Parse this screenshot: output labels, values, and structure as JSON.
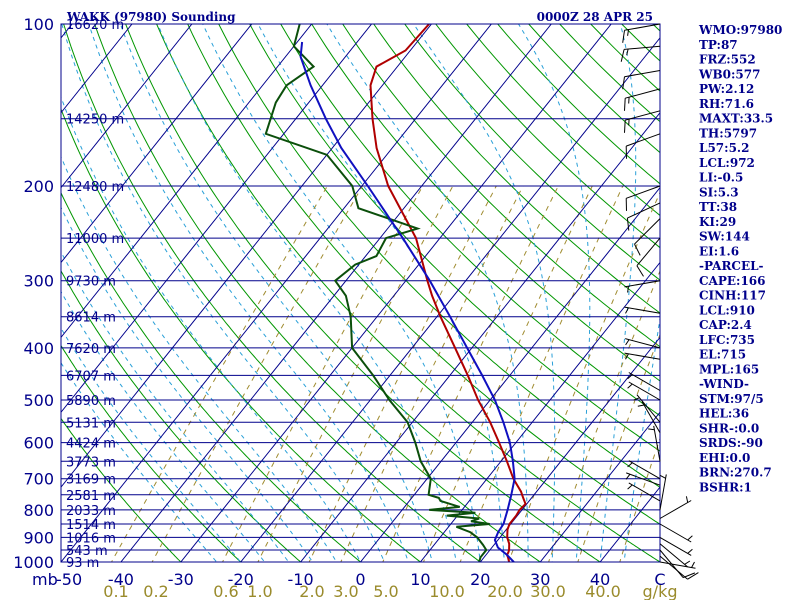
{
  "header": {
    "station": "WAKK (97980) Sounding",
    "time": "0000Z 28 APR 25"
  },
  "indices": [
    "WMO:97980",
    "TP:87",
    "FRZ:552",
    "WB0:577",
    "PW:2.12",
    "RH:71.6",
    "MAXT:33.5",
    "TH:5797",
    "L57:5.2",
    "LCL:972",
    "LI:-0.5",
    "SI:5.3",
    "TT:38",
    "KI:29",
    "SW:144",
    "EI:1.6",
    "-PARCEL-",
    "CAPE:166",
    "CINH:117",
    "LCL:910",
    "CAP:2.4",
    "LFC:735",
    "EL:715",
    "MPL:165",
    "-WIND-",
    "STM:97/5",
    "HEL:36",
    "SHR-:0.0",
    "SRDS:-90",
    "EHI:0.0",
    "BRN:270.7",
    "BSHR:1"
  ],
  "colors": {
    "frame": "#00008b",
    "isobar": "#00008b",
    "isotherm": "#00008b",
    "dry_adiabat": "#009600",
    "moist_adiabat": "#2aa0d8",
    "mixing_ratio": "#a08c30",
    "temperature": "#b00000",
    "dewpoint": "#0b4f0b",
    "parcel": "#1010c0",
    "wind_barb": "#000000"
  },
  "chart_data": {
    "type": "skew-t log-p sounding",
    "y_scale": "log",
    "pressure_unit": "mb",
    "ylim": [
      1000,
      100
    ],
    "xlim": [
      -50,
      50
    ],
    "pressure_ticks": [
      100,
      200,
      300,
      400,
      500,
      600,
      700,
      800,
      900,
      1000
    ],
    "temperature_ticks": [
      -50,
      -40,
      -30,
      -20,
      -10,
      0,
      10,
      20,
      30,
      40,
      50
    ],
    "temperature_tick_labels": [
      "-50",
      "-40",
      "-30",
      "-20",
      "-10",
      "0",
      "10",
      "20",
      "30",
      "40",
      "C"
    ],
    "mixing_ratio_labels": [
      "0.1",
      "0.2",
      "0.6",
      "1.0",
      "2.0",
      "3.0",
      "5.0",
      "10.0",
      "20.0",
      "30.0",
      "40.0",
      "g/kg"
    ],
    "height_levels": [
      {
        "p": 100,
        "label": "16620 m"
      },
      {
        "p": 150,
        "label": "14250 m"
      },
      {
        "p": 200,
        "label": "12480 m"
      },
      {
        "p": 250,
        "label": "11000 m"
      },
      {
        "p": 300,
        "label": "9730 m"
      },
      {
        "p": 350,
        "label": "8614 m"
      },
      {
        "p": 400,
        "label": "7620 m"
      },
      {
        "p": 450,
        "label": "6707 m"
      },
      {
        "p": 500,
        "label": "5890 m"
      },
      {
        "p": 550,
        "label": "5131 m"
      },
      {
        "p": 600,
        "label": "4424 m"
      },
      {
        "p": 650,
        "label": "3773 m"
      },
      {
        "p": 700,
        "label": "3169 m"
      },
      {
        "p": 750,
        "label": "2581 m"
      },
      {
        "p": 800,
        "label": "2033 m"
      },
      {
        "p": 850,
        "label": "1514 m"
      },
      {
        "p": 900,
        "label": "1016 m"
      },
      {
        "p": 950,
        "label": "543 m"
      },
      {
        "p": 1000,
        "label": "93 m"
      }
    ],
    "series": [
      {
        "key": "temperature",
        "points": [
          [
            1000,
            24.8
          ],
          [
            980,
            24.0
          ],
          [
            970,
            23.5
          ],
          [
            960,
            23.4
          ],
          [
            950,
            23.2
          ],
          [
            925,
            22.4
          ],
          [
            900,
            21.2
          ],
          [
            870,
            20.2
          ],
          [
            850,
            19.8
          ],
          [
            820,
            19.8
          ],
          [
            800,
            19.6
          ],
          [
            780,
            19.8
          ],
          [
            760,
            18.6
          ],
          [
            740,
            17.4
          ],
          [
            700,
            14.4
          ],
          [
            650,
            11.0
          ],
          [
            600,
            7.2
          ],
          [
            550,
            3.0
          ],
          [
            500,
            -2.0
          ],
          [
            450,
            -7.0
          ],
          [
            400,
            -12.8
          ],
          [
            350,
            -19.4
          ],
          [
            320,
            -23.6
          ],
          [
            300,
            -26.4
          ],
          [
            250,
            -34.0
          ],
          [
            200,
            -45.6
          ],
          [
            170,
            -52.6
          ],
          [
            150,
            -57.2
          ],
          [
            130,
            -62.0
          ],
          [
            120,
            -63.5
          ],
          [
            112,
            -60.8
          ],
          [
            100,
            -60.4
          ]
        ]
      },
      {
        "key": "dewpoint",
        "points": [
          [
            1000,
            19.8
          ],
          [
            980,
            19.4
          ],
          [
            960,
            19.4
          ],
          [
            950,
            19.4
          ],
          [
            930,
            18.2
          ],
          [
            900,
            16.2
          ],
          [
            880,
            14.3
          ],
          [
            860,
            11.3
          ],
          [
            850,
            16.5
          ],
          [
            840,
            13.0
          ],
          [
            830,
            14.0
          ],
          [
            820,
            8.2
          ],
          [
            810,
            12.6
          ],
          [
            800,
            4.5
          ],
          [
            790,
            9.2
          ],
          [
            780,
            7.2
          ],
          [
            770,
            5.2
          ],
          [
            760,
            4.5
          ],
          [
            750,
            2.4
          ],
          [
            700,
            0.6
          ],
          [
            650,
            -3.4
          ],
          [
            600,
            -6.8
          ],
          [
            550,
            -10.8
          ],
          [
            500,
            -16.8
          ],
          [
            450,
            -22.8
          ],
          [
            400,
            -30.0
          ],
          [
            350,
            -34.4
          ],
          [
            320,
            -38.0
          ],
          [
            300,
            -41.8
          ],
          [
            280,
            -40.6
          ],
          [
            270,
            -38.2
          ],
          [
            250,
            -39.0
          ],
          [
            240,
            -35.0
          ],
          [
            220,
            -47.6
          ],
          [
            200,
            -51.6
          ],
          [
            175,
            -60.0
          ],
          [
            160,
            -73.0
          ],
          [
            140,
            -75.5
          ],
          [
            130,
            -76.0
          ],
          [
            120,
            -74.0
          ],
          [
            110,
            -80.0
          ],
          [
            100,
            -82.0
          ]
        ]
      },
      {
        "key": "parcel",
        "points": [
          [
            1000,
            25.6
          ],
          [
            970,
            23.5
          ],
          [
            940,
            21.0
          ],
          [
            910,
            19.5
          ],
          [
            880,
            19.0
          ],
          [
            850,
            18.8
          ],
          [
            800,
            17.6
          ],
          [
            750,
            16.2
          ],
          [
            700,
            14.6
          ],
          [
            650,
            12.0
          ],
          [
            600,
            9.0
          ],
          [
            550,
            5.2
          ],
          [
            500,
            0.8
          ],
          [
            450,
            -4.6
          ],
          [
            400,
            -10.8
          ],
          [
            350,
            -17.8
          ],
          [
            300,
            -26.0
          ],
          [
            250,
            -36.2
          ],
          [
            200,
            -49.0
          ],
          [
            170,
            -58.5
          ],
          [
            150,
            -65.0
          ],
          [
            130,
            -72.0
          ],
          [
            115,
            -77.5
          ],
          [
            108,
            -79.2
          ]
        ]
      }
    ],
    "wind_barbs": [
      {
        "p": 100,
        "dir": 260,
        "kt": 15
      },
      {
        "p": 110,
        "dir": 265,
        "kt": 15
      },
      {
        "p": 122,
        "dir": 260,
        "kt": 10
      },
      {
        "p": 132,
        "dir": 255,
        "kt": 15
      },
      {
        "p": 145,
        "dir": 255,
        "kt": 15
      },
      {
        "p": 160,
        "dir": 250,
        "kt": 10
      },
      {
        "p": 200,
        "dir": 250,
        "kt": 10
      },
      {
        "p": 215,
        "dir": 245,
        "kt": 10
      },
      {
        "p": 230,
        "dir": 225,
        "kt": 10
      },
      {
        "p": 250,
        "dir": 220,
        "kt": 10
      },
      {
        "p": 300,
        "dir": 260,
        "kt": 5
      },
      {
        "p": 345,
        "dir": 280,
        "kt": 5
      },
      {
        "p": 400,
        "dir": 285,
        "kt": 5
      },
      {
        "p": 420,
        "dir": 280,
        "kt": 5
      },
      {
        "p": 480,
        "dir": 300,
        "kt": 5
      },
      {
        "p": 500,
        "dir": 300,
        "kt": 5
      },
      {
        "p": 550,
        "dir": 320,
        "kt": 5
      },
      {
        "p": 575,
        "dir": 330,
        "kt": 5
      },
      {
        "p": 650,
        "dir": 350,
        "kt": 5
      },
      {
        "p": 700,
        "dir": 300,
        "kt": 5
      },
      {
        "p": 720,
        "dir": 290,
        "kt": 5
      },
      {
        "p": 770,
        "dir": 300,
        "kt": 5
      },
      {
        "p": 800,
        "dir": 10,
        "kt": 5
      },
      {
        "p": 830,
        "dir": 60,
        "kt": 5
      },
      {
        "p": 850,
        "dir": 120,
        "kt": 5
      },
      {
        "p": 900,
        "dir": 120,
        "kt": 5
      },
      {
        "p": 925,
        "dir": 130,
        "kt": 5
      },
      {
        "p": 950,
        "dir": 140,
        "kt": 10
      },
      {
        "p": 975,
        "dir": 130,
        "kt": 10
      },
      {
        "p": 1000,
        "dir": 100,
        "kt": 5
      }
    ]
  }
}
